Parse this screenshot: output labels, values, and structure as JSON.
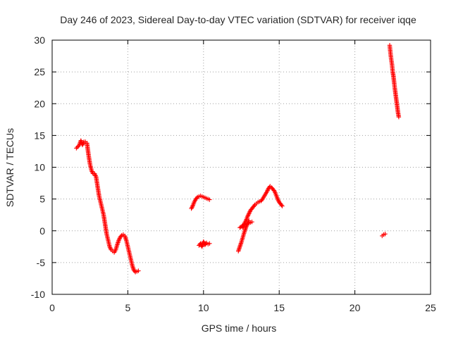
{
  "chart_data": {
    "type": "scatter",
    "title": "Day 246 of 2023, Sidereal Day-to-day VTEC variation (SDTVAR) for receiver iqqe",
    "xlabel": "GPS time / hours",
    "ylabel": "SDTVAR / TECUs",
    "xlim": [
      0,
      25
    ],
    "ylim": [
      -10,
      30
    ],
    "xticks": [
      "0",
      "5",
      "10",
      "15",
      "20",
      "25"
    ],
    "yticks": [
      "-10",
      "-5",
      "0",
      "5",
      "10",
      "15",
      "20",
      "25",
      "30"
    ],
    "grid": true,
    "marker": "plus",
    "color": "#ff0000",
    "series": [
      {
        "name": "SDTVAR",
        "segments": [
          {
            "x": [
              1.6,
              1.8,
              1.9,
              2.0,
              2.1,
              2.2,
              2.3,
              2.4,
              2.5,
              2.6,
              2.7,
              2.8,
              2.9,
              3.0,
              3.1,
              3.2,
              3.3,
              3.4,
              3.5,
              3.6,
              3.7,
              3.8,
              3.9,
              4.0,
              4.1,
              4.2,
              4.3,
              4.4,
              4.5,
              4.6,
              4.7,
              4.8,
              4.9,
              5.0,
              5.1,
              5.2,
              5.3,
              5.4,
              5.5,
              5.6,
              5.7
            ],
            "y": [
              13.0,
              13.5,
              14.2,
              13.5,
              14.0,
              14.0,
              13.8,
              12.0,
              10.5,
              9.5,
              9.0,
              9.0,
              8.5,
              7.0,
              5.5,
              4.5,
              3.5,
              2.5,
              1.0,
              -0.5,
              -1.5,
              -2.5,
              -3.0,
              -3.2,
              -3.4,
              -3.0,
              -2.2,
              -1.5,
              -1.0,
              -0.7,
              -0.6,
              -0.8,
              -1.5,
              -2.5,
              -3.5,
              -4.5,
              -5.5,
              -6.2,
              -6.5,
              -6.4,
              -6.3
            ]
          },
          {
            "x": [
              9.2,
              9.3,
              9.4,
              9.5,
              9.6,
              9.7,
              9.8,
              9.9,
              10.0,
              10.1,
              10.2,
              10.3,
              10.4
            ],
            "y": [
              3.5,
              4.0,
              4.6,
              5.0,
              5.3,
              5.4,
              5.5,
              5.4,
              5.3,
              5.2,
              5.1,
              5.0,
              4.9
            ]
          },
          {
            "x": [
              9.7,
              9.8,
              9.9,
              10.0,
              10.1,
              10.2,
              10.3,
              10.4
            ],
            "y": [
              -2.3,
              -2.0,
              -2.5,
              -1.7,
              -2.2,
              -1.9,
              -2.1,
              -2.0
            ]
          },
          {
            "x": [
              12.3,
              12.4,
              12.5,
              12.6,
              12.7,
              12.8,
              12.9,
              13.0
            ],
            "y": [
              -3.2,
              -2.5,
              -1.8,
              -1.0,
              -0.2,
              0.5,
              1.2,
              1.6
            ]
          },
          {
            "x": [
              12.4,
              12.6,
              12.8,
              13.0,
              13.2
            ],
            "y": [
              0.5,
              0.8,
              1.0,
              1.2,
              1.4
            ]
          },
          {
            "x": [
              12.6,
              12.7,
              12.8,
              12.9,
              13.0,
              13.1,
              13.2,
              13.3,
              13.4,
              13.5,
              13.6,
              13.7,
              13.8,
              13.9,
              14.0,
              14.1,
              14.2,
              14.3,
              14.4,
              14.5,
              14.6,
              14.7,
              14.8,
              14.9,
              15.0,
              15.1,
              15.2
            ],
            "y": [
              0.5,
              1.2,
              1.6,
              2.2,
              2.7,
              3.2,
              3.5,
              3.8,
              4.1,
              4.3,
              4.5,
              4.6,
              4.7,
              5.0,
              5.4,
              5.8,
              6.2,
              6.7,
              7.0,
              6.8,
              6.5,
              6.2,
              5.6,
              5.0,
              4.5,
              4.2,
              3.9
            ]
          },
          {
            "x": [
              21.8,
              21.9,
              22.0
            ],
            "y": [
              -0.8,
              -0.6,
              -0.5
            ]
          },
          {
            "x": [
              22.3,
              22.35,
              22.4,
              22.45,
              22.5,
              22.55,
              22.6,
              22.65,
              22.7,
              22.75,
              22.8,
              22.85,
              22.9
            ],
            "y": [
              29.2,
              28.0,
              27.0,
              26.2,
              25.0,
              24.3,
              23.2,
              22.2,
              21.3,
              20.4,
              19.5,
              18.6,
              17.9
            ]
          }
        ]
      }
    ]
  }
}
